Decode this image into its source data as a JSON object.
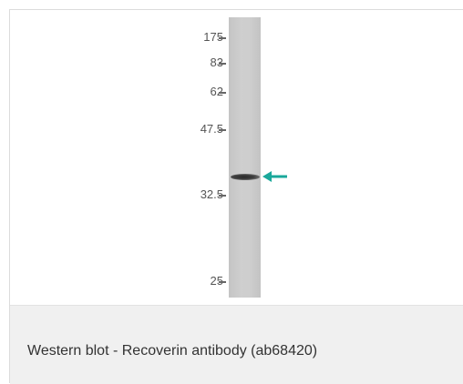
{
  "figure": {
    "markers": [
      "175",
      "83",
      "62",
      "47.5",
      "32.5",
      "25"
    ],
    "arrow_color": "#1aa89b",
    "caption": "Western blot - Recoverin antibody (ab68420)"
  }
}
